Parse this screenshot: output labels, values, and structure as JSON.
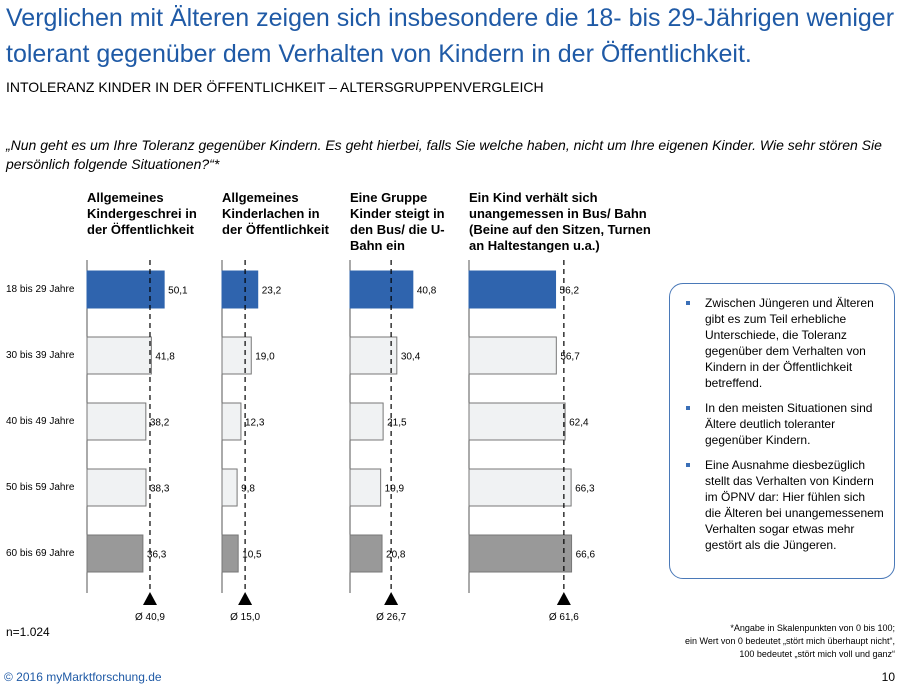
{
  "header": {
    "title": "Verglichen mit Älteren zeigen sich insbesondere die 18- bis 29-Jährigen weniger tolerant gegenüber dem Verhalten von Kindern in der Öffentlichkeit.",
    "subtitle": "INTOLERANZ KINDER IN DER ÖFFENTLICHKEIT – ALTERSGRUPPENVERGLEICH",
    "question": "„Nun geht es um Ihre Toleranz gegenüber Kindern. Es geht hierbei, falls Sie welche haben, nicht um Ihre eigenen Kinder. Wie sehr stören Sie persönlich folgende Situationen?“*"
  },
  "colors": {
    "title": "#1f5aa6",
    "highlight_bar": "#2f64ae",
    "light_bar": "#f0f2f3",
    "dark_bar": "#999999",
    "box_border": "#4a79b8"
  },
  "chart_data": {
    "type": "bar",
    "orientation": "horizontal",
    "xlim": [
      0,
      100
    ],
    "categories": [
      "18 bis 29 Jahre",
      "30 bis 39 Jahre",
      "40 bis 49 Jahre",
      "50 bis 59 Jahre",
      "60 bis 69 Jahre"
    ],
    "series": [
      {
        "name": "Allgemeines Kindergeschrei in der Öffentlichkeit",
        "values": [
          50.1,
          41.8,
          38.2,
          38.3,
          36.3
        ],
        "labels": [
          "50,1",
          "41,8",
          "38,2",
          "38,3",
          "36,3"
        ],
        "average": 40.9,
        "average_label": "Ø 40,9"
      },
      {
        "name": "Allgemeines Kinderlachen in der Öffentlichkeit",
        "values": [
          23.2,
          19.0,
          12.3,
          9.8,
          10.5
        ],
        "labels": [
          "23,2",
          "19,0",
          "12,3",
          "9,8",
          "10,5"
        ],
        "average": 15.0,
        "average_label": "Ø 15,0"
      },
      {
        "name": "Eine Gruppe Kinder steigt in den Bus/ die U-Bahn ein",
        "values": [
          40.8,
          30.4,
          21.5,
          19.9,
          20.8
        ],
        "labels": [
          "40,8",
          "30,4",
          "21,5",
          "19,9",
          "20,8"
        ],
        "average": 26.7,
        "average_label": "Ø 26,7"
      },
      {
        "name": "Ein Kind verhält sich unangemessen in Bus/ Bahn (Beine auf den Sitzen, Turnen an Haltestangen u.a.)",
        "values": [
          56.2,
          56.7,
          62.4,
          66.3,
          66.6
        ],
        "labels": [
          "56,2",
          "56,7",
          "62,4",
          "66,3",
          "66,6"
        ],
        "average": 61.6,
        "average_label": "Ø 61,6"
      }
    ]
  },
  "column_headers": [
    [
      "Allgemeines",
      "Kindergeschrei in",
      "der Öffentlichkeit"
    ],
    [
      "Allgemeines",
      "Kinderlachen in",
      "der Öffentlichkeit"
    ],
    [
      "Eine Gruppe",
      "Kinder steigt in",
      "den Bus/ die U-",
      "Bahn ein"
    ],
    [
      "Ein Kind verhält sich",
      "unangemessen in Bus/ Bahn",
      "(Beine auf den Sitzen, Turnen",
      "an Haltestangen u.a.)"
    ]
  ],
  "infobox": {
    "items": [
      "Zwischen Jüngeren und Älteren gibt es zum Teil erhebliche Unterschiede, die Toleranz gegenüber dem Verhalten von Kindern in der Öffentlichkeit betreffend.",
      "In den meisten Situationen sind Ältere deutlich toleranter gegenüber Kindern.",
      "Eine Ausnahme diesbezüglich stellt das Verhalten von Kindern im ÖPNV dar: Hier fühlen sich die Älteren bei unangemessenem Verhalten sogar etwas mehr gestört als die Jüngeren."
    ]
  },
  "footer": {
    "n": "n=1.024",
    "footnote_lines": [
      "*Angabe in Skalenpunkten von 0 bis 100;",
      "ein Wert von 0 bedeutet „stört mich überhaupt nicht“,",
      "100 bedeutet „stört mich voll und ganz“"
    ],
    "copyright": "© 2016 myMarktforschung.de",
    "page_number": "10"
  }
}
